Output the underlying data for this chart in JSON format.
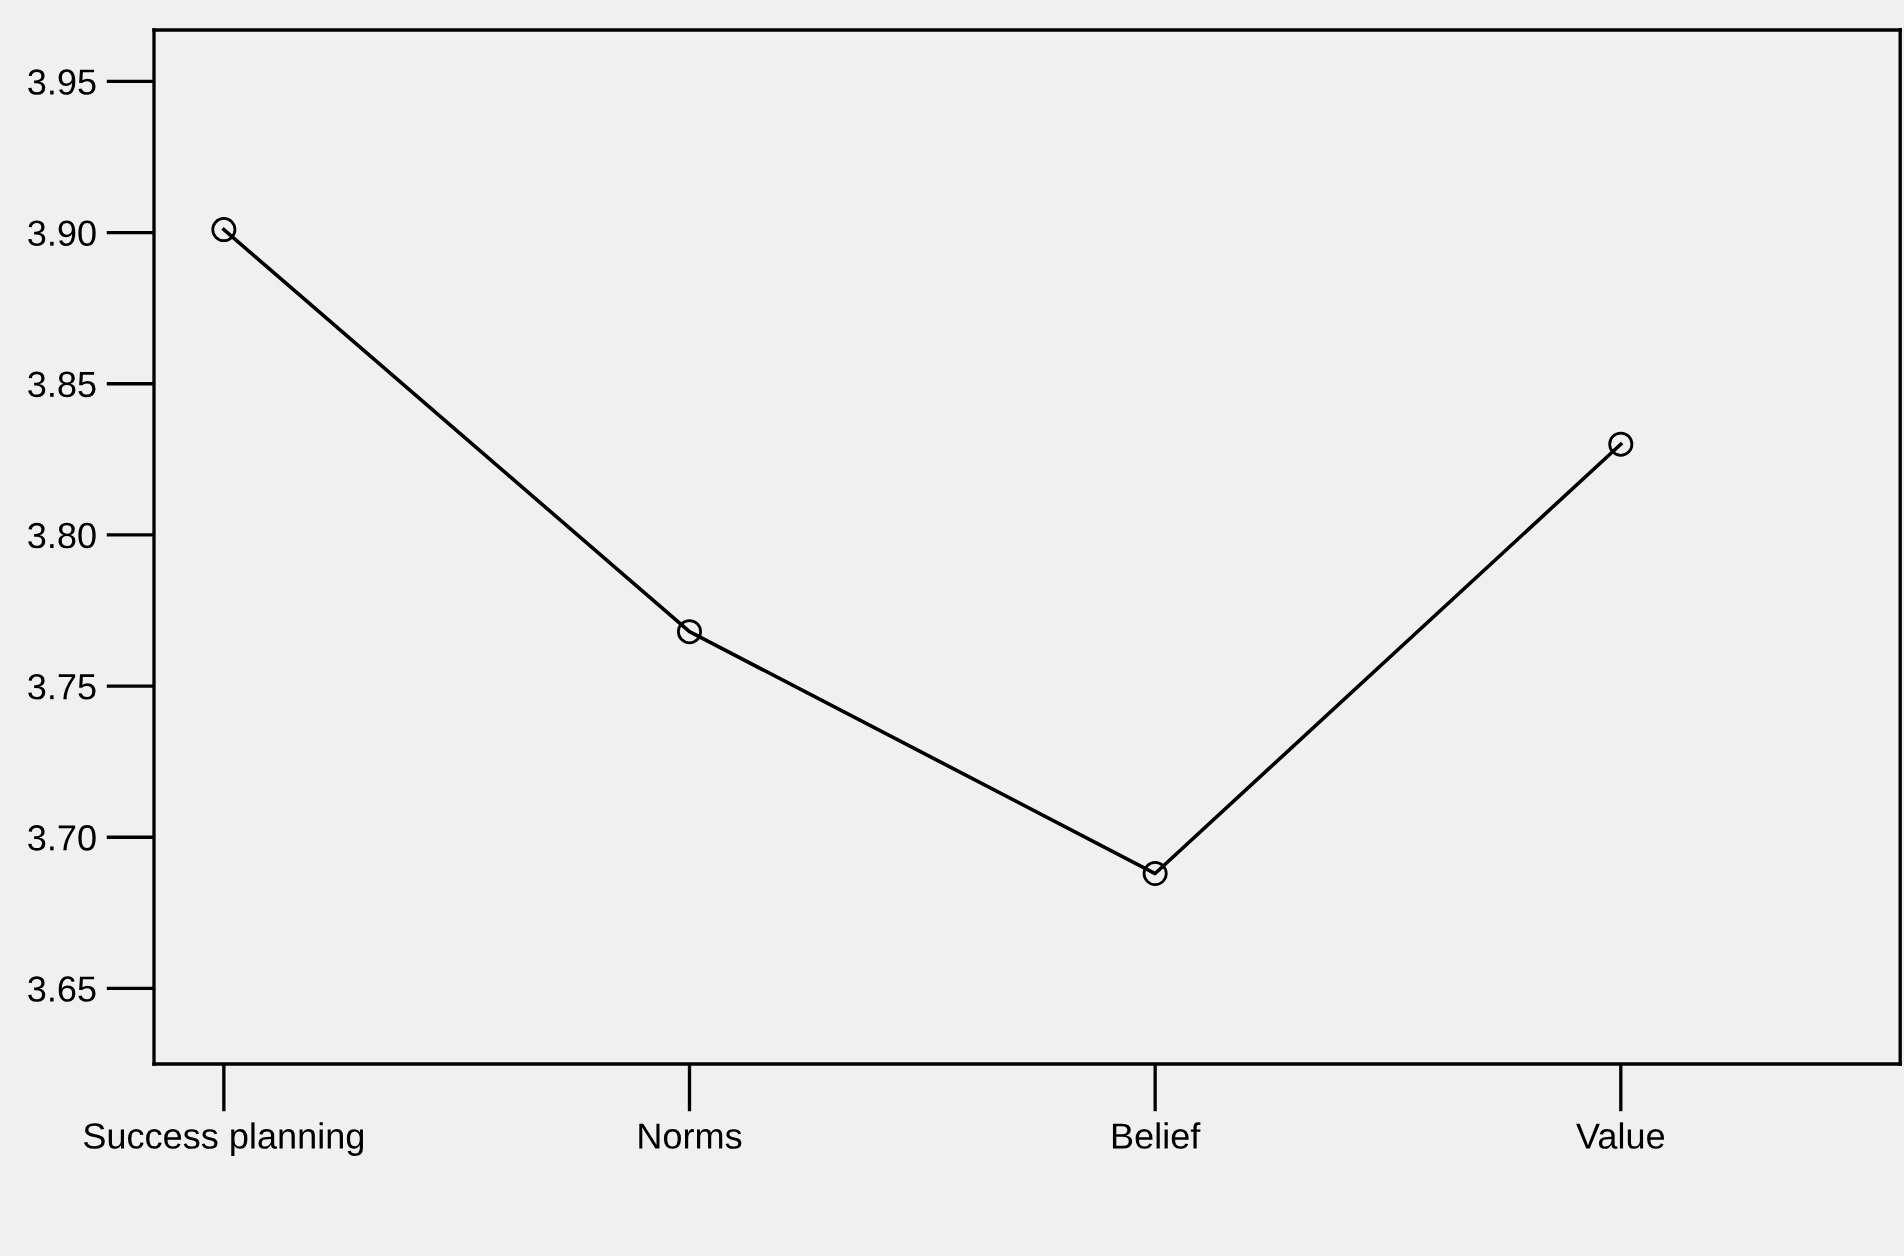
{
  "chart_data": {
    "type": "line",
    "categories": [
      "Success planning",
      "Norms",
      "Belief",
      "Value"
    ],
    "series": [
      {
        "color": "#000000",
        "values": [
          3.901,
          3.768,
          3.688,
          3.83
        ]
      }
    ],
    "ylim": [
      3.625,
      3.967
    ],
    "yticks": [
      {
        "value": 3.65,
        "label": "3.65"
      },
      {
        "value": 3.7,
        "label": "3.70"
      },
      {
        "value": 3.75,
        "label": "3.75"
      },
      {
        "value": 3.8,
        "label": "3.80"
      },
      {
        "value": 3.85,
        "label": "3.85"
      },
      {
        "value": 3.9,
        "label": "3.90"
      },
      {
        "value": 3.95,
        "label": "3.95"
      }
    ],
    "marker": "circle",
    "line_style": "solid",
    "grid": false,
    "legend": false
  }
}
